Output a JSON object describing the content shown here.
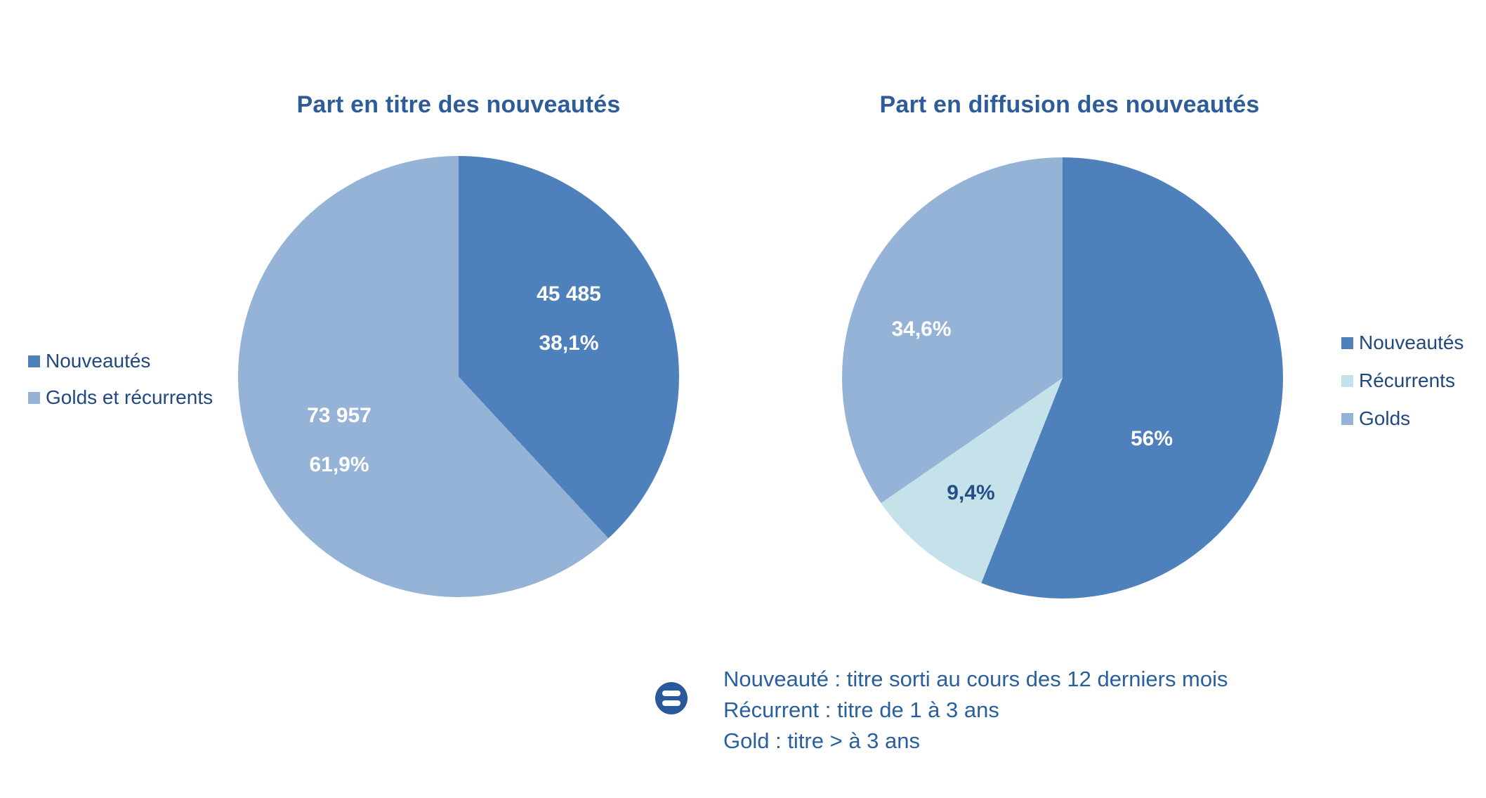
{
  "page": {
    "background": "#FFFFFF"
  },
  "colors": {
    "title": "#2E5C98",
    "legend_text": "#21497E",
    "accent_dark": "#4E80BB",
    "accent_light": "#95B3D7",
    "accent_pale": "#C5E1EA",
    "note_text": "#2A5F9E"
  },
  "chart_data": [
    {
      "type": "pie",
      "title": "Part en titre des nouveautés",
      "start_angle_deg": 0,
      "direction": "clockwise",
      "legend_position": "left",
      "slices": [
        {
          "label": "Nouveautés",
          "value": 45485,
          "value_text": "45 485",
          "pct": 38.1,
          "pct_text": "38,1%",
          "color": "#4E80BB",
          "text_color": "#FFFFFF"
        },
        {
          "label": "Golds et récurrents",
          "value": 73957,
          "value_text": "73 957",
          "pct": 61.9,
          "pct_text": "61,9%",
          "color": "#95B3D7",
          "text_color": "#FFFFFF"
        }
      ]
    },
    {
      "type": "pie",
      "title": "Part en diffusion des nouveautés",
      "start_angle_deg": 0,
      "direction": "clockwise",
      "legend_position": "right",
      "slices": [
        {
          "label": "Nouveautés",
          "pct": 56,
          "pct_text": "56%",
          "color": "#4E80BB",
          "text_color": "#FFFFFF"
        },
        {
          "label": "Récurrents",
          "pct": 9.4,
          "pct_text": "9,4%",
          "color": "#C5E1EA",
          "text_color": "#254F86"
        },
        {
          "label": "Golds",
          "pct": 34.6,
          "pct_text": "34,6%",
          "color": "#95B3D7",
          "text_color": "#FFFFFF"
        }
      ]
    }
  ],
  "note": {
    "icon": "equals-circle-icon",
    "icon_color": "#27599B",
    "text_color": "#2A5F9E",
    "lines": [
      "Nouveauté : titre sorti au cours des 12 derniers mois",
      "Récurrent : titre de 1 à 3 ans",
      "Gold : titre > à 3 ans"
    ]
  }
}
